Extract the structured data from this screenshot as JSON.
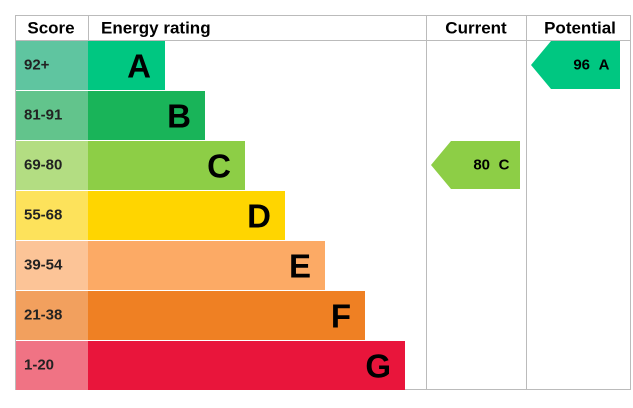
{
  "header": {
    "score": "Score",
    "rating": "Energy rating",
    "current": "Current",
    "potential": "Potential"
  },
  "bands": [
    {
      "score": "92+",
      "letter": "A",
      "color": "#00c781",
      "score_color": "#5fc5a0"
    },
    {
      "score": "81-91",
      "letter": "B",
      "color": "#19b459",
      "score_color": "#62c48c"
    },
    {
      "score": "69-80",
      "letter": "C",
      "color": "#8dce46",
      "score_color": "#b3dd82"
    },
    {
      "score": "55-68",
      "letter": "D",
      "color": "#ffd500",
      "score_color": "#fde25b"
    },
    {
      "score": "39-54",
      "letter": "E",
      "color": "#fcaa65",
      "score_color": "#fcc497"
    },
    {
      "score": "21-38",
      "letter": "F",
      "color": "#ef8023",
      "score_color": "#f2a05e"
    },
    {
      "score": "1-20",
      "letter": "G",
      "color": "#e9153b",
      "score_color": "#f07384"
    }
  ],
  "current": {
    "value": 80,
    "letter": "C"
  },
  "potential": {
    "value": 96,
    "letter": "A"
  }
}
